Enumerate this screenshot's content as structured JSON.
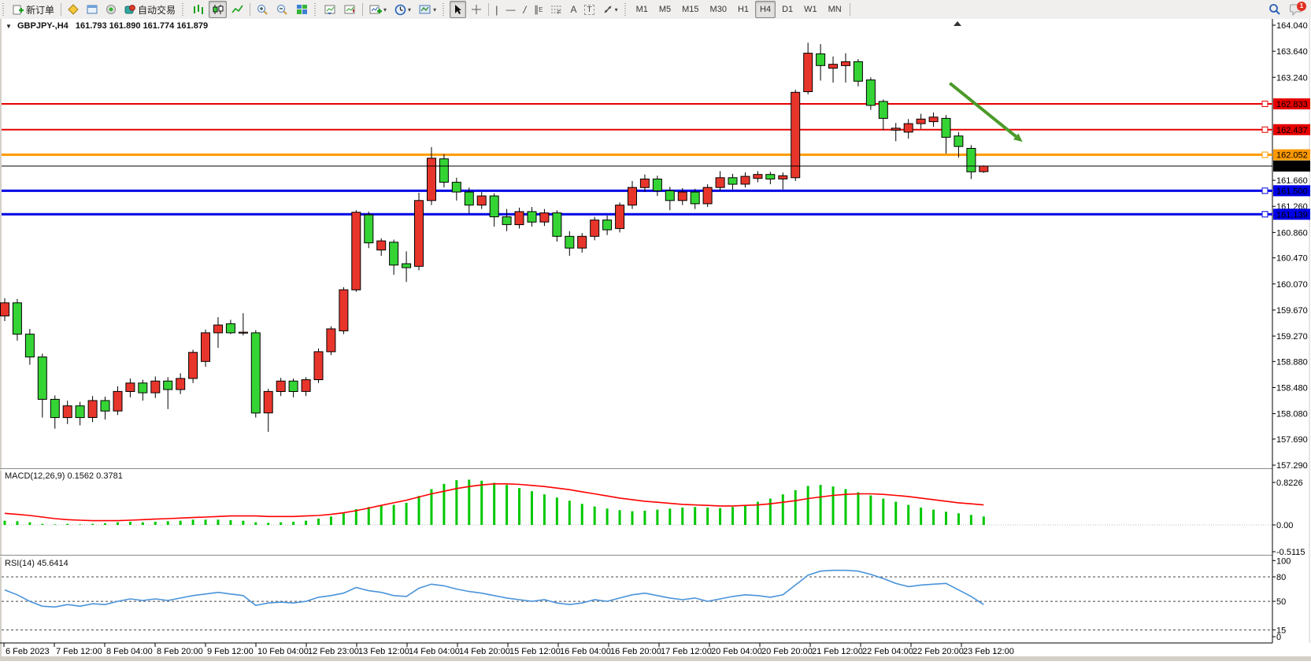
{
  "toolbar": {
    "new_order_label": "新订单",
    "auto_trading_label": "自动交易",
    "timeframes": [
      "M1",
      "M5",
      "M15",
      "M30",
      "H1",
      "H4",
      "D1",
      "W1",
      "MN"
    ],
    "active_timeframe": "H4",
    "chat_badge_count": "1",
    "glyphs": {
      "caret": "▾",
      "crosshair": "+",
      "vline": "|",
      "hline": "—",
      "trendline": "/",
      "channel": "∥",
      "channel_sub": "E",
      "fibo": "F",
      "text_tool": "A",
      "label_tool": "T",
      "title_dropdown": "▼"
    }
  },
  "header": {
    "symbol": "GBPJPY-,H4",
    "ohlc": "161.793 161.890 161.774 161.879"
  },
  "indicators": {
    "macd_label": "MACD(12,26,9) 0.1562 0.3781",
    "rsi_label": "RSI(14) 45.6414"
  },
  "chart_data": {
    "type": "candlestick",
    "symbol": "GBPJPY-",
    "period": "H4",
    "current_ohlc": {
      "open": 161.793,
      "high": 161.89,
      "low": 161.774,
      "close": 161.879
    },
    "colors": {
      "up": "#e8352b",
      "down": "#35d435",
      "wick": "#000000",
      "macd_hist": "#00c800",
      "macd_signal": "#ff0000",
      "rsi": "#4a93d9",
      "line_red": "#e60000",
      "line_orange": "#ff9900",
      "line_blue": "#0000e6",
      "current_price": "#000000",
      "arrow": "#4c9a2a"
    },
    "price_axis_ticks": [
      164.04,
      163.64,
      163.24,
      161.66,
      161.26,
      160.86,
      160.47,
      160.07,
      159.67,
      159.27,
      158.88,
      158.48,
      158.08,
      157.69,
      157.29
    ],
    "hlines": [
      {
        "price": 162.833,
        "label": "162.833",
        "color": "#e60000",
        "width": 2
      },
      {
        "price": 162.437,
        "label": "162.437",
        "color": "#e60000",
        "width": 2
      },
      {
        "price": 162.052,
        "label": "162.052",
        "color": "#ff9900",
        "width": 3
      },
      {
        "price": 161.5,
        "label": "161.500",
        "color": "#0000e6",
        "width": 3
      },
      {
        "price": 161.139,
        "label": "161.139",
        "color": "#0000e6",
        "width": 3
      }
    ],
    "current_price_line": {
      "price": 161.879,
      "label": "161.879",
      "color": "#000000"
    },
    "arrow_object": {
      "from_index": 75.3,
      "from_price": 163.15,
      "to_index": 81.1,
      "to_price": 162.25
    },
    "time_labels": [
      "6 Feb 2023",
      "7 Feb 12:00",
      "8 Feb 04:00",
      "8 Feb 20:00",
      "9 Feb 12:00",
      "10 Feb 04:00",
      "12 Feb 23:00",
      "13 Feb 12:00",
      "14 Feb 04:00",
      "14 Feb 20:00",
      "15 Feb 12:00",
      "16 Feb 04:00",
      "16 Feb 20:00",
      "17 Feb 12:00",
      "20 Feb 04:00",
      "20 Feb 20:00",
      "21 Feb 12:00",
      "22 Feb 04:00",
      "22 Feb 20:00",
      "23 Feb 12:00"
    ],
    "candles": [
      [
        159.58,
        159.85,
        159.5,
        159.78
      ],
      [
        159.78,
        159.84,
        159.2,
        159.3
      ],
      [
        159.3,
        159.38,
        158.83,
        158.95
      ],
      [
        158.95,
        159.0,
        158.02,
        158.3
      ],
      [
        158.3,
        158.36,
        157.85,
        158.02
      ],
      [
        158.02,
        158.28,
        157.92,
        158.2
      ],
      [
        158.2,
        158.26,
        157.9,
        158.02
      ],
      [
        158.02,
        158.35,
        157.95,
        158.28
      ],
      [
        158.28,
        158.34,
        157.99,
        158.12
      ],
      [
        158.12,
        158.5,
        158.06,
        158.42
      ],
      [
        158.42,
        158.62,
        158.33,
        158.55
      ],
      [
        158.55,
        158.6,
        158.28,
        158.4
      ],
      [
        158.4,
        158.65,
        158.32,
        158.58
      ],
      [
        158.58,
        158.64,
        158.15,
        158.45
      ],
      [
        158.45,
        158.7,
        158.38,
        158.62
      ],
      [
        158.62,
        159.06,
        158.55,
        159.02
      ],
      [
        158.88,
        159.37,
        158.8,
        159.32
      ],
      [
        159.32,
        159.56,
        159.09,
        159.44
      ],
      [
        159.46,
        159.52,
        159.3,
        159.32
      ],
      [
        159.33,
        159.62,
        159.28,
        159.33
      ],
      [
        159.32,
        159.36,
        158.02,
        158.09
      ],
      [
        158.09,
        158.46,
        157.8,
        158.42
      ],
      [
        158.42,
        158.63,
        158.35,
        158.58
      ],
      [
        158.58,
        158.62,
        158.33,
        158.42
      ],
      [
        158.42,
        158.64,
        158.35,
        158.6
      ],
      [
        158.6,
        159.08,
        158.55,
        159.03
      ],
      [
        159.03,
        159.42,
        158.98,
        159.38
      ],
      [
        159.35,
        160.02,
        159.3,
        159.98
      ],
      [
        159.98,
        161.2,
        159.95,
        161.17
      ],
      [
        161.13,
        161.18,
        160.62,
        160.7
      ],
      [
        160.59,
        160.77,
        160.5,
        160.73
      ],
      [
        160.71,
        160.75,
        160.21,
        160.36
      ],
      [
        160.38,
        160.57,
        160.1,
        160.32
      ],
      [
        160.34,
        161.47,
        160.28,
        161.35
      ],
      [
        161.35,
        162.17,
        161.28,
        162.0
      ],
      [
        161.99,
        162.06,
        161.55,
        161.63
      ],
      [
        161.63,
        161.7,
        161.35,
        161.48
      ],
      [
        161.48,
        161.55,
        161.15,
        161.28
      ],
      [
        161.28,
        161.48,
        161.22,
        161.42
      ],
      [
        161.42,
        161.46,
        160.95,
        161.1
      ],
      [
        161.1,
        161.22,
        160.88,
        160.98
      ],
      [
        160.98,
        161.24,
        160.92,
        161.18
      ],
      [
        161.18,
        161.25,
        160.95,
        161.02
      ],
      [
        161.02,
        161.22,
        160.96,
        161.16
      ],
      [
        161.16,
        161.2,
        160.72,
        160.8
      ],
      [
        160.8,
        160.88,
        160.5,
        160.62
      ],
      [
        160.62,
        160.85,
        160.55,
        160.8
      ],
      [
        160.8,
        161.1,
        160.74,
        161.05
      ],
      [
        161.05,
        161.12,
        160.82,
        160.9
      ],
      [
        160.92,
        161.32,
        160.86,
        161.28
      ],
      [
        161.28,
        161.65,
        161.22,
        161.55
      ],
      [
        161.55,
        161.75,
        161.48,
        161.68
      ],
      [
        161.68,
        161.73,
        161.42,
        161.5
      ],
      [
        161.5,
        161.56,
        161.2,
        161.35
      ],
      [
        161.35,
        161.54,
        161.28,
        161.48
      ],
      [
        161.48,
        161.53,
        161.22,
        161.3
      ],
      [
        161.3,
        161.6,
        161.25,
        161.55
      ],
      [
        161.55,
        161.8,
        161.5,
        161.7
      ],
      [
        161.7,
        161.76,
        161.52,
        161.6
      ],
      [
        161.6,
        161.78,
        161.55,
        161.72
      ],
      [
        161.69,
        161.8,
        161.63,
        161.75
      ],
      [
        161.75,
        161.79,
        161.6,
        161.68
      ],
      [
        161.68,
        161.78,
        161.52,
        161.73
      ],
      [
        161.7,
        163.05,
        161.65,
        163.01
      ],
      [
        163.02,
        163.77,
        162.98,
        163.61
      ],
      [
        163.6,
        163.75,
        163.19,
        163.42
      ],
      [
        163.38,
        163.56,
        163.16,
        163.44
      ],
      [
        163.42,
        163.61,
        163.16,
        163.48
      ],
      [
        163.48,
        163.52,
        163.1,
        163.18
      ],
      [
        163.2,
        163.24,
        162.74,
        162.81
      ],
      [
        162.87,
        162.9,
        162.43,
        162.61
      ],
      [
        162.43,
        162.54,
        162.26,
        162.46
      ],
      [
        162.4,
        162.6,
        162.3,
        162.53
      ],
      [
        162.53,
        162.68,
        162.45,
        162.6
      ],
      [
        162.56,
        162.7,
        162.48,
        162.63
      ],
      [
        162.61,
        162.66,
        162.07,
        162.32
      ],
      [
        162.34,
        162.4,
        162.01,
        162.18
      ],
      [
        162.15,
        162.2,
        161.68,
        161.79
      ],
      [
        161.793,
        161.89,
        161.774,
        161.879
      ]
    ],
    "macd": {
      "name": "MACD(12,26,9)",
      "main_value": 0.1562,
      "signal_value": 0.3781,
      "axis_labels": [
        {
          "v": 0.8226,
          "t": "0.8226"
        },
        {
          "v": 0.0,
          "t": "0.00"
        },
        {
          "v": -0.5115,
          "t": "-0.5115"
        }
      ],
      "histogram": [
        0.08,
        0.07,
        0.05,
        0.02,
        0.01,
        0.02,
        0.01,
        0.02,
        0.03,
        0.05,
        0.06,
        0.05,
        0.06,
        0.07,
        0.08,
        0.1,
        0.1,
        0.1,
        0.09,
        0.08,
        0.05,
        0.04,
        0.05,
        0.06,
        0.08,
        0.12,
        0.16,
        0.22,
        0.3,
        0.34,
        0.36,
        0.38,
        0.42,
        0.55,
        0.68,
        0.78,
        0.85,
        0.86,
        0.84,
        0.8,
        0.76,
        0.7,
        0.64,
        0.58,
        0.52,
        0.46,
        0.4,
        0.35,
        0.31,
        0.28,
        0.26,
        0.27,
        0.29,
        0.31,
        0.33,
        0.34,
        0.33,
        0.32,
        0.34,
        0.38,
        0.44,
        0.5,
        0.58,
        0.66,
        0.74,
        0.76,
        0.73,
        0.68,
        0.62,
        0.56,
        0.5,
        0.44,
        0.38,
        0.33,
        0.29,
        0.25,
        0.22,
        0.19,
        0.16
      ],
      "signal": [
        0.22,
        0.2,
        0.18,
        0.15,
        0.12,
        0.1,
        0.09,
        0.08,
        0.08,
        0.08,
        0.09,
        0.1,
        0.11,
        0.12,
        0.13,
        0.14,
        0.15,
        0.16,
        0.17,
        0.17,
        0.17,
        0.16,
        0.16,
        0.16,
        0.17,
        0.18,
        0.2,
        0.23,
        0.27,
        0.32,
        0.37,
        0.42,
        0.47,
        0.53,
        0.59,
        0.64,
        0.69,
        0.73,
        0.76,
        0.78,
        0.78,
        0.77,
        0.75,
        0.73,
        0.7,
        0.67,
        0.63,
        0.59,
        0.55,
        0.51,
        0.48,
        0.45,
        0.43,
        0.41,
        0.39,
        0.38,
        0.37,
        0.36,
        0.36,
        0.37,
        0.38,
        0.4,
        0.43,
        0.46,
        0.5,
        0.53,
        0.56,
        0.58,
        0.59,
        0.59,
        0.58,
        0.56,
        0.54,
        0.51,
        0.48,
        0.45,
        0.42,
        0.4,
        0.38
      ]
    },
    "rsi": {
      "name": "RSI(14)",
      "value": 45.6414,
      "axis_labels": [
        {
          "v": 100,
          "t": "100"
        },
        {
          "v": 80,
          "t": "80"
        },
        {
          "v": 50,
          "t": "50"
        },
        {
          "v": 15,
          "t": "15"
        },
        {
          "v": 0,
          "t": "0"
        }
      ],
      "dashed_levels": [
        80,
        50,
        15
      ],
      "values": [
        64,
        58,
        50,
        44,
        43,
        46,
        44,
        47,
        46,
        50,
        53,
        51,
        53,
        51,
        54,
        57,
        59,
        61,
        59,
        57,
        45,
        48,
        49,
        48,
        50,
        55,
        57,
        60,
        67,
        63,
        61,
        57,
        56,
        66,
        71,
        69,
        65,
        62,
        60,
        57,
        54,
        52,
        50,
        52,
        48,
        46,
        48,
        52,
        50,
        54,
        58,
        60,
        57,
        54,
        52,
        54,
        50,
        53,
        56,
        58,
        57,
        55,
        58,
        70,
        82,
        87,
        88,
        88,
        87,
        83,
        78,
        72,
        68,
        70,
        71,
        72,
        64,
        56,
        46
      ]
    }
  }
}
